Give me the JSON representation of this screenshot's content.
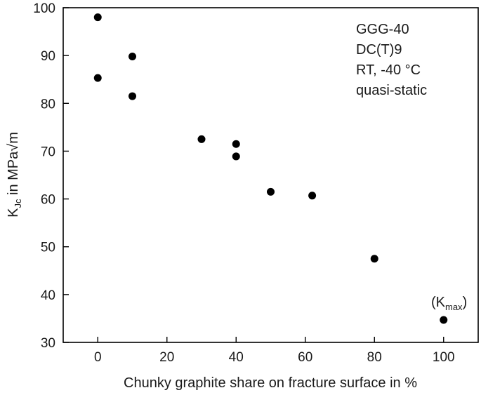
{
  "chart_data": {
    "type": "scatter",
    "title": "",
    "xlabel": "Chunky graphite share on fracture surface in %",
    "ylabel": {
      "main": "K",
      "sub": "Jc",
      "rest": " in MPa√m"
    },
    "xlim": [
      -10,
      110
    ],
    "ylim": [
      30,
      100
    ],
    "xticks": [
      0,
      20,
      40,
      60,
      80,
      100
    ],
    "yticks": [
      30,
      40,
      50,
      60,
      70,
      80,
      90,
      100
    ],
    "x_tick_labels": [
      "0",
      "20",
      "40",
      "60",
      "80",
      "100"
    ],
    "y_tick_labels": [
      "30",
      "40",
      "50",
      "60",
      "70",
      "80",
      "90",
      "100"
    ],
    "grid": false,
    "legend": null,
    "point_color": "#000000",
    "series": [
      {
        "points": [
          {
            "x": 0,
            "y": 98.0
          },
          {
            "x": 0,
            "y": 85.3
          },
          {
            "x": 10,
            "y": 89.8
          },
          {
            "x": 10,
            "y": 81.5
          },
          {
            "x": 30,
            "y": 72.5
          },
          {
            "x": 40,
            "y": 71.5
          },
          {
            "x": 40,
            "y": 68.9
          },
          {
            "x": 50,
            "y": 61.5
          },
          {
            "x": 62,
            "y": 60.7
          },
          {
            "x": 80,
            "y": 47.5
          },
          {
            "x": 100,
            "y": 34.7
          }
        ]
      }
    ],
    "annotations": {
      "info_lines": [
        "GGG-40",
        "DC(T)9",
        "RT, -40 °C",
        "quasi-static"
      ],
      "kmax_label": {
        "open": "(K",
        "sub": "max",
        "close": ")"
      }
    }
  }
}
